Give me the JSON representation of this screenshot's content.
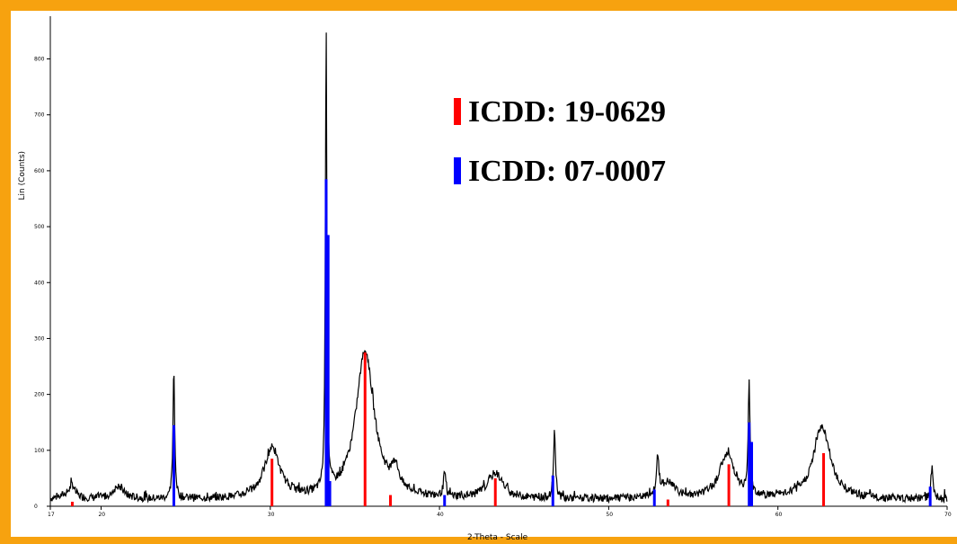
{
  "chart_data": {
    "type": "line",
    "title": "",
    "xlabel": "2-Theta - Scale",
    "ylabel": "Lin (Counts)",
    "xlim": [
      17,
      70
    ],
    "ylim": [
      0,
      870
    ],
    "x_ticks": [
      17,
      20,
      30,
      40,
      50,
      60,
      70
    ],
    "x_tick_labels": [
      "17",
      "20",
      "30",
      "40",
      "50",
      "60",
      "70"
    ],
    "y_ticks": [
      0,
      100,
      200,
      300,
      400,
      500,
      600,
      700,
      800
    ],
    "y_tick_labels": [
      "0",
      "100",
      "200",
      "300",
      "400",
      "500",
      "600",
      "700",
      "800"
    ],
    "pattern": {
      "color": "#000000",
      "baseline": 12,
      "peaks": [
        {
          "x": 18.3,
          "height": 18,
          "width": 0.15
        },
        {
          "x": 18.1,
          "height": 10,
          "width": 0.5
        },
        {
          "x": 21.0,
          "height": 22,
          "width": 0.4
        },
        {
          "x": 24.3,
          "height": 235,
          "width": 0.06
        },
        {
          "x": 33.3,
          "height": 850,
          "width": 0.05
        },
        {
          "x": 30.1,
          "height": 90,
          "width": 0.55
        },
        {
          "x": 35.6,
          "height": 265,
          "width": 0.65
        },
        {
          "x": 37.4,
          "height": 40,
          "width": 0.25
        },
        {
          "x": 40.3,
          "height": 42,
          "width": 0.08
        },
        {
          "x": 43.3,
          "height": 45,
          "width": 0.55
        },
        {
          "x": 46.8,
          "height": 120,
          "width": 0.07
        },
        {
          "x": 52.9,
          "height": 70,
          "width": 0.08
        },
        {
          "x": 53.5,
          "height": 28,
          "width": 0.5
        },
        {
          "x": 57.0,
          "height": 80,
          "width": 0.55
        },
        {
          "x": 58.3,
          "height": 205,
          "width": 0.06
        },
        {
          "x": 62.6,
          "height": 130,
          "width": 0.6
        },
        {
          "x": 69.1,
          "height": 55,
          "width": 0.08
        }
      ]
    },
    "series": [
      {
        "name": "ICDD: 19-0629",
        "color": "#ff0000",
        "type": "stick",
        "x": [
          18.3,
          30.1,
          35.6,
          37.1,
          43.3,
          53.5,
          57.1,
          62.7
        ],
        "values": [
          8,
          85,
          275,
          20,
          50,
          12,
          75,
          95
        ]
      },
      {
        "name": "ICDD: 07-0007",
        "color": "#0000ff",
        "type": "stick",
        "x": [
          24.3,
          33.3,
          33.42,
          33.52,
          40.3,
          46.7,
          52.7,
          58.3,
          58.45,
          69.0
        ],
        "values": [
          145,
          585,
          485,
          45,
          20,
          55,
          30,
          150,
          115,
          35
        ]
      }
    ],
    "legend": [
      {
        "label": "ICDD: 19-0629",
        "color": "#ff0000"
      },
      {
        "label": "ICDD: 07-0007",
        "color": "#0000ff"
      }
    ],
    "legend_position": "top-right",
    "grid": false
  }
}
